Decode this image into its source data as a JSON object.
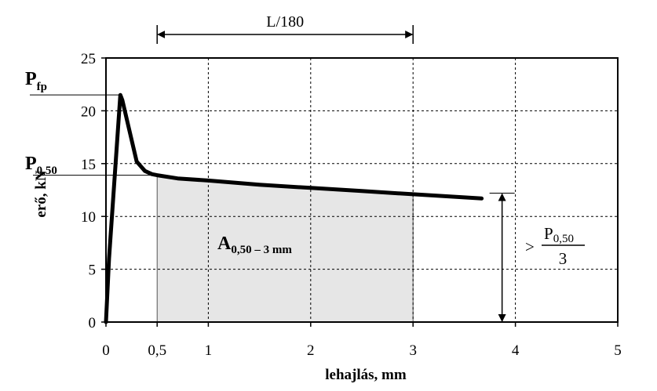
{
  "chart_data": {
    "type": "line",
    "xlabel": "lehajlás, mm",
    "ylabel": "erő, kN",
    "xlim": [
      0,
      5
    ],
    "ylim": [
      0,
      25
    ],
    "x_ticks": [
      0,
      0.5,
      1,
      2,
      3,
      4,
      5
    ],
    "x_tick_labels": [
      "0",
      "0,5",
      "1",
      "2",
      "3",
      "4",
      "5"
    ],
    "y_ticks": [
      0,
      5,
      10,
      15,
      20,
      25
    ],
    "y_tick_labels": [
      "0",
      "5",
      "10",
      "15",
      "20",
      "25"
    ],
    "x_gridlines": [
      1,
      2,
      3,
      4
    ],
    "y_gridlines": [
      5,
      10,
      15,
      20
    ],
    "grid": true,
    "series": [
      {
        "x": [
          0.0,
          0.03,
          0.14,
          0.16,
          0.22,
          0.3,
          0.38,
          0.45,
          0.5,
          0.7,
          1.0,
          1.5,
          2.0,
          2.5,
          3.0,
          3.5,
          3.67
        ],
        "y": [
          0.0,
          6.0,
          21.5,
          21.0,
          18.5,
          15.2,
          14.3,
          14.0,
          13.9,
          13.6,
          13.4,
          13.0,
          12.7,
          12.4,
          12.1,
          11.8,
          11.7
        ]
      }
    ],
    "shaded_region": {
      "x_from": 0.5,
      "x_to": 3.0
    },
    "annotations": {
      "p_fp": {
        "main": "P",
        "sub": "fp",
        "value": 21.5
      },
      "p_050": {
        "main": "P",
        "sub": "0,50",
        "value": 13.9
      },
      "area": {
        "main": "A",
        "sub": "0,50 – 3 mm"
      },
      "span": {
        "label": "L/180",
        "x_from": 0.5,
        "x_to": 3.0
      },
      "residual": {
        "prefix": ">",
        "numerator_main": "P",
        "numerator_sub": "0,50",
        "denominator": "3",
        "x": 3.87,
        "y_from": 0,
        "y_to": 12.2
      }
    }
  }
}
